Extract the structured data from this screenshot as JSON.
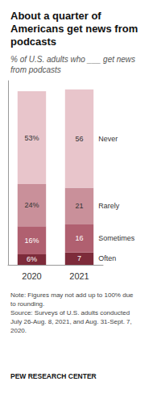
{
  "chart_data": {
    "type": "bar",
    "title": "About a quarter of\nAmericans get news from\npodcasts",
    "subtitle": "% of U.S. adults who ___ get news\nfrom podcasts",
    "categories": [
      "2020",
      "2021"
    ],
    "series": [
      {
        "name": "Often",
        "color": "#7d2b3a",
        "values": [
          6,
          7
        ],
        "value_labels": [
          "6%",
          "7"
        ]
      },
      {
        "name": "Sometimes",
        "color": "#b06070",
        "values": [
          16,
          16
        ],
        "value_labels": [
          "16%",
          "16"
        ]
      },
      {
        "name": "Rarely",
        "color": "#c9909a",
        "values": [
          24,
          21
        ],
        "value_labels": [
          "24%",
          "21"
        ]
      },
      {
        "name": "Never",
        "color": "#e8c5cb",
        "values": [
          53,
          56
        ],
        "value_labels": [
          "53%",
          "56"
        ]
      }
    ],
    "stacked": true,
    "data_labels": true,
    "ylim": [
      0,
      105
    ],
    "yticks": [],
    "tick_labels": "x",
    "grid": false,
    "annotations": [
      "Note: Figures may not add up to 100% due\nto rounding.\nSource: Surveys of U.S. adults conducted\nJuly 26-Aug. 8, 2021, and Aug. 31-Sept. 7,\n2020.",
      "PEW RESEARCH CENTER"
    ]
  }
}
